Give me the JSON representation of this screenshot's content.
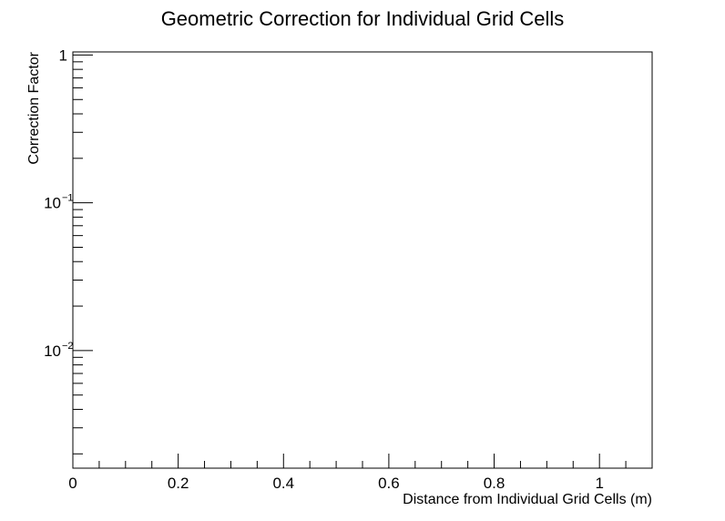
{
  "chart_data": {
    "type": "scatter",
    "title": "Geometric Correction for Individual Grid Cells",
    "xlabel": "Distance from Individual Grid Cells (m)",
    "ylabel": "Correction Factor",
    "xlim": [
      0,
      1.1
    ],
    "ylim": [
      0.001,
      1.0
    ],
    "y_scale": "log",
    "grid": false,
    "series": [],
    "x_tick_labels": [
      "0",
      "0.2",
      "0.4",
      "0.6",
      "0.8",
      "1"
    ],
    "y_tick_labels": [
      {
        "base": "1",
        "exp": ""
      },
      {
        "base": "10",
        "exp": "−1"
      },
      {
        "base": "10",
        "exp": "−2"
      }
    ]
  }
}
